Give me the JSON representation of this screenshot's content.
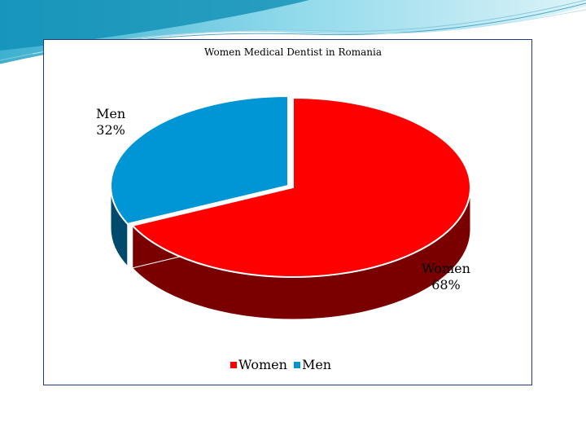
{
  "chart_data": {
    "type": "pie",
    "title": "Women Medical Dentist in Romania",
    "categories": [
      "Women",
      "Men"
    ],
    "values": [
      68,
      32
    ],
    "data_labels": [
      {
        "category": "Women",
        "value_text": "68%"
      },
      {
        "category": "Men",
        "value_text": "32%"
      }
    ],
    "colors": {
      "Women": "#ff0000",
      "Men": "#0096d6"
    },
    "side_colors": {
      "Women": "#7a0000",
      "Men": "#004a6b"
    },
    "style": "3d-exploded",
    "legend": {
      "position": "bottom",
      "entries": [
        "Women",
        "Men"
      ]
    }
  }
}
